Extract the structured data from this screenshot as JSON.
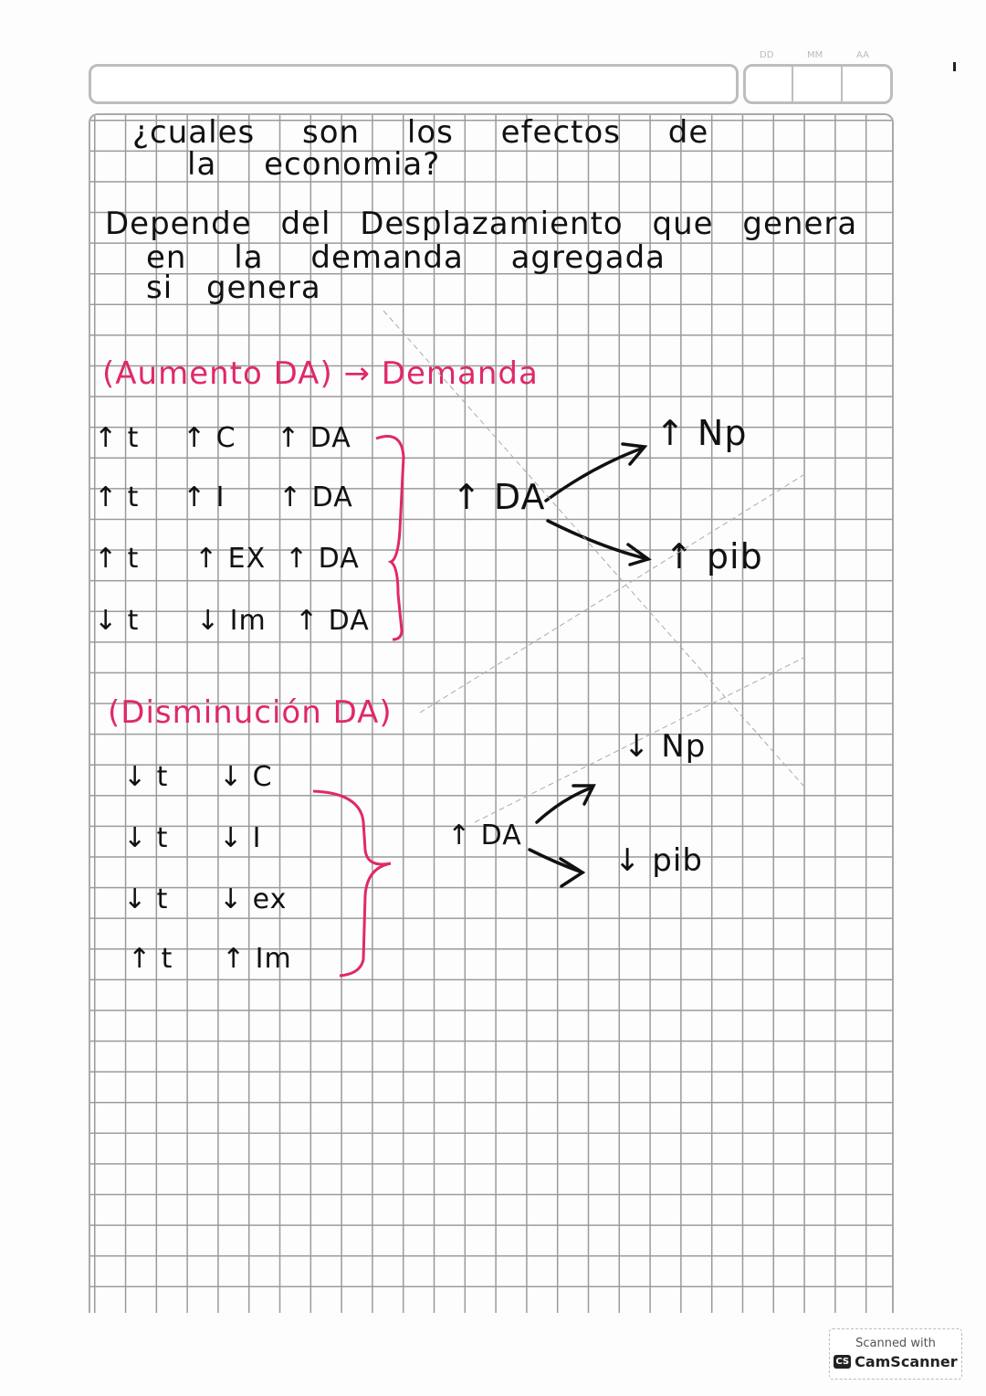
{
  "header": {
    "date_labels": [
      "DD",
      "MM",
      "AA"
    ]
  },
  "question": {
    "line1": "¿cuales son los efectos de",
    "line2": "la economia?"
  },
  "answer": {
    "line1": "Depende del Desplazamiento que genera",
    "line2": "en la demanda agregada",
    "line3": "si genera"
  },
  "increase": {
    "title": "(Aumento DA) → Demanda",
    "rows": [
      [
        "↑ t",
        "↑ C",
        "↑ DA"
      ],
      [
        "↑ t",
        "↑ I",
        "↑ DA"
      ],
      [
        "↑ t",
        "↑ EX",
        "↑ DA"
      ],
      [
        "↓ t",
        "↓ Im",
        "↑ DA"
      ]
    ],
    "center": "↑ DA",
    "result_top": "↑ Np",
    "result_bottom": "↑ pib"
  },
  "decrease": {
    "title": "(Disminución DA)",
    "rows": [
      [
        "↓ t",
        "↓ C"
      ],
      [
        "↓ t",
        "↓ I"
      ],
      [
        "↓ t",
        "↓ ex"
      ],
      [
        "↑ t",
        "↑ Im"
      ]
    ],
    "center": "↑ DA",
    "result_top": "↓ Np",
    "result_bottom": "↓ pib"
  },
  "colors": {
    "ink": "#111111",
    "accent": "#e0286a",
    "grid": "#9a9a9a"
  },
  "watermark": {
    "line1": "Scanned with",
    "line2": "CamScanner",
    "logo": "CS"
  }
}
